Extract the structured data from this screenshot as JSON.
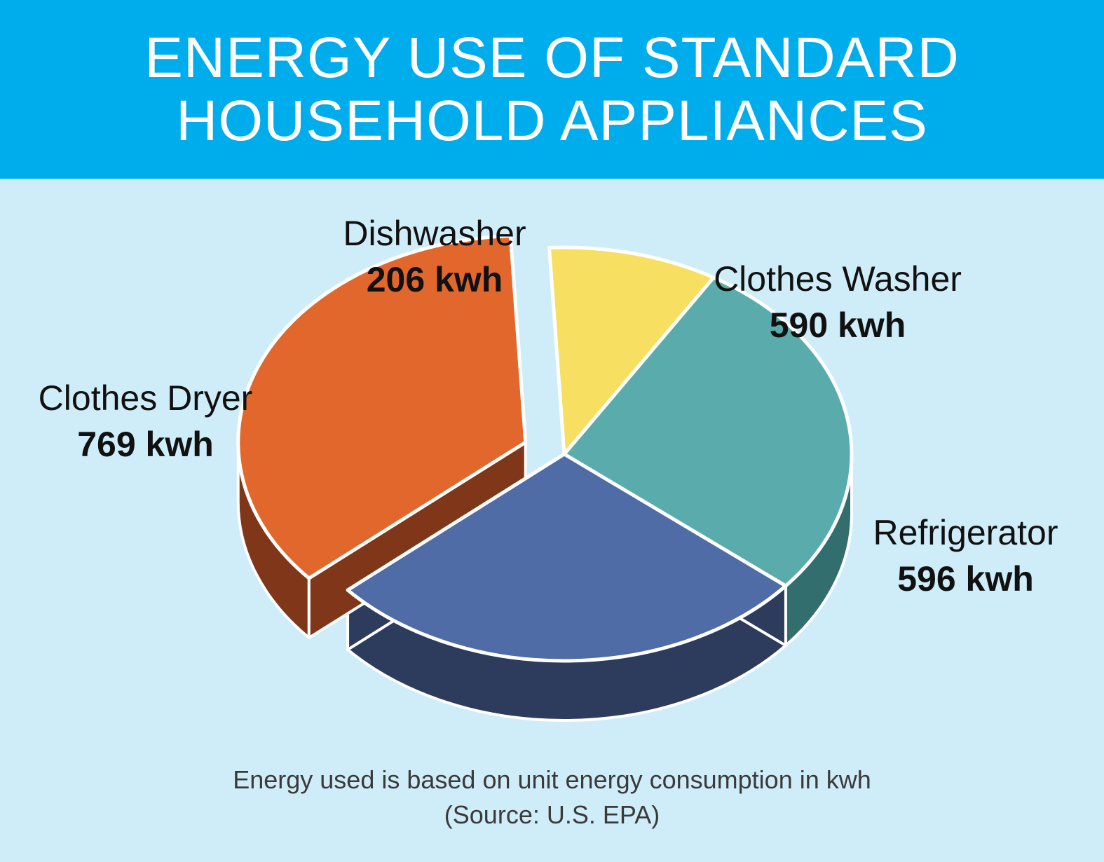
{
  "header": {
    "title_line1": "ENERGY USE OF STANDARD",
    "title_line2": "HOUSEHOLD APPLIANCES",
    "background": "#00adec"
  },
  "page": {
    "background": "#cfedf9"
  },
  "chart_data": {
    "type": "pie",
    "style": "3d-exploded",
    "unit": "kwh",
    "slices": [
      {
        "label": "Dishwasher",
        "value": 206,
        "value_label": "206 kwh",
        "color": "#f7df62",
        "side_color": "#5a4e20"
      },
      {
        "label": "Clothes Washer",
        "value": 590,
        "value_label": "590 kwh",
        "color": "#5aacac",
        "side_color": "#336e6e"
      },
      {
        "label": "Refrigerator",
        "value": 596,
        "value_label": "596 kwh",
        "color": "#4f6ca6",
        "side_color": "#2d3b5c"
      },
      {
        "label": "Clothes Dryer",
        "value": 769,
        "value_label": "769 kwh",
        "color": "#e2672d",
        "side_color": "#7f3619",
        "exploded": true
      }
    ]
  },
  "footnote": {
    "line1": "Energy used is based on unit energy consumption in kwh",
    "line2": "(Source: U.S. EPA)"
  }
}
